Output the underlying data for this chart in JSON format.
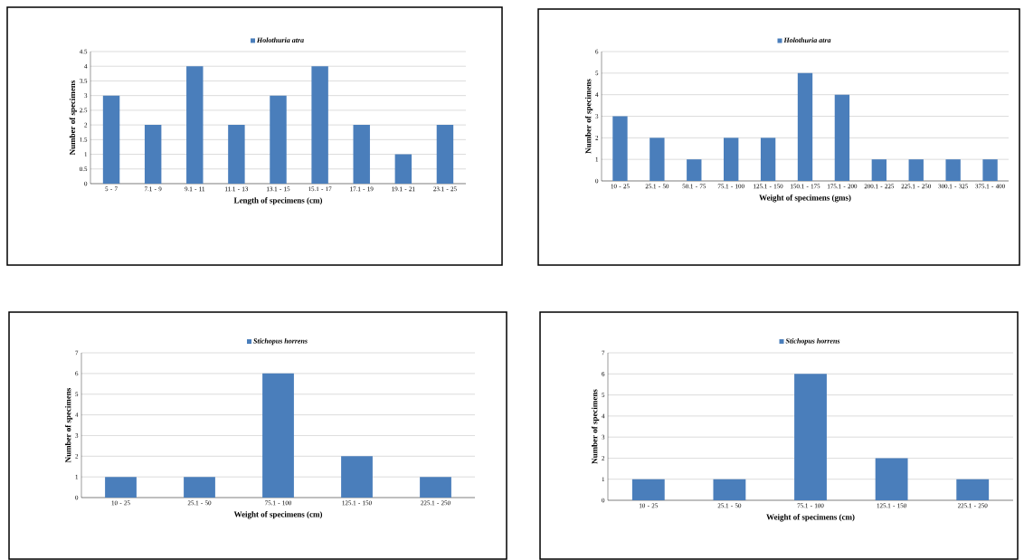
{
  "chart_data": [
    {
      "type": "bar",
      "legend": "top",
      "grid": "y",
      "xlabel": "Length of specimens  (cm)",
      "ylabel": "Number of specimens",
      "categories": [
        "5 - 7",
        "7.1 - 9",
        "9.1 - 11",
        "11.1 - 13",
        "13.1 - 15",
        "15.1 - 17",
        "17.1 - 19",
        "19.1 - 21",
        "23.1 - 25"
      ],
      "series": [
        {
          "name": "Holothuria atra",
          "color": "#4a7ebb",
          "values": [
            3,
            2,
            4,
            2,
            3,
            4,
            2,
            1,
            2
          ]
        }
      ],
      "ylim": [
        0,
        4.5
      ],
      "yticks": [
        0,
        0.5,
        1,
        1.5,
        2,
        2.5,
        3,
        3.5,
        4,
        4.5
      ]
    },
    {
      "type": "bar",
      "legend": "top",
      "grid": "y",
      "xlabel": "Weight of specimens (gms)",
      "ylabel": "Number of specimens",
      "categories": [
        "10 - 25",
        "25.1 - 50",
        "50.1 - 75",
        "75.1 - 100",
        "125.1 - 150",
        "150.1 - 175",
        "175.1 - 200",
        "200.1 - 225",
        "225.1 - 250",
        "300.1 - 325",
        "375.1 - 400"
      ],
      "series": [
        {
          "name": "Holothuria atra",
          "color": "#4a7ebb",
          "values": [
            3,
            2,
            1,
            2,
            2,
            5,
            4,
            1,
            1,
            1,
            1
          ]
        }
      ],
      "ylim": [
        0,
        6
      ],
      "yticks": [
        0,
        1,
        2,
        3,
        4,
        5,
        6
      ]
    },
    {
      "type": "bar",
      "legend": "top",
      "grid": "y",
      "xlabel": "Weight of specimens (cm)",
      "ylabel": "Number of specimens",
      "categories": [
        "10 - 25",
        "25.1 - 50",
        "75.1 - 100",
        "125.1 - 150",
        "225.1 - 250"
      ],
      "series": [
        {
          "name": "Stichopus horrens",
          "color": "#4a7ebb",
          "values": [
            1,
            1,
            6,
            2,
            1
          ]
        }
      ],
      "ylim": [
        0,
        7
      ],
      "yticks": [
        0,
        1,
        2,
        3,
        4,
        5,
        6,
        7
      ]
    },
    {
      "type": "bar",
      "legend": "top",
      "grid": "y",
      "xlabel": "Weight of specimens (cm)",
      "ylabel": "Number of specimens",
      "categories": [
        "10 - 25",
        "25.1 - 50",
        "75.1 - 100",
        "125.1 - 150",
        "225.1 - 250"
      ],
      "series": [
        {
          "name": "Stichopus horrens",
          "color": "#4a7ebb",
          "values": [
            1,
            1,
            6,
            2,
            1
          ]
        }
      ],
      "ylim": [
        0,
        7
      ],
      "yticks": [
        0,
        1,
        2,
        3,
        4,
        5,
        6,
        7
      ]
    }
  ]
}
